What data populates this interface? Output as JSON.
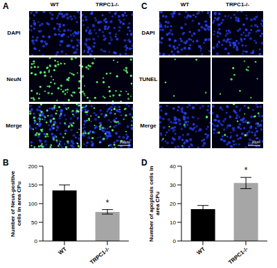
{
  "panels": [
    {
      "label": "A",
      "columns": [
        "WT",
        "TRPC1-/-"
      ],
      "rows": [
        "DAPI",
        "NeuN",
        "Merge"
      ],
      "scale_bar": "100μm"
    },
    {
      "label": "C",
      "columns": [
        "WT",
        "TRPC1-/-"
      ],
      "rows": [
        "DAPI",
        "TUNEL",
        "Merge"
      ],
      "scale_bar": "20μm"
    }
  ],
  "chart_data": [
    {
      "panel": "B",
      "type": "bar",
      "y_label": "Number of Neun-positive cells in area CPu",
      "categories": [
        "WT",
        "TRPC1-/-"
      ],
      "values": [
        135,
        78
      ],
      "errors": [
        15,
        6
      ],
      "colors": [
        "#000000",
        "#a6a6a6"
      ],
      "ylim": [
        0,
        200
      ],
      "yticks": [
        0,
        50,
        100,
        150,
        200
      ],
      "annotations": [
        {
          "category": "TRPC1-/-",
          "text": "*"
        }
      ]
    },
    {
      "panel": "D",
      "type": "bar",
      "y_label": "Number of apoptosis cells in area CPu",
      "categories": [
        "WT",
        "TRPC1-/-"
      ],
      "values": [
        17,
        31
      ],
      "errors": [
        2,
        3
      ],
      "colors": [
        "#000000",
        "#a6a6a6"
      ],
      "ylim": [
        0,
        40
      ],
      "yticks": [
        0,
        10,
        20,
        30,
        40
      ],
      "annotations": [
        {
          "category": "TRPC1-/-",
          "text": "*"
        }
      ]
    }
  ]
}
